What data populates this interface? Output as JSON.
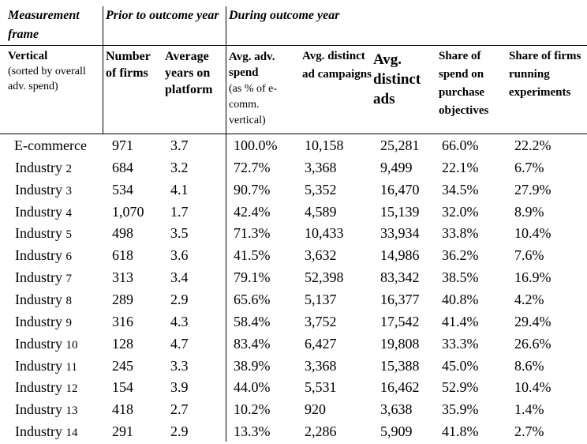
{
  "groups": {
    "measurement_frame": "Measurement frame",
    "prior": "Prior to outcome year",
    "during": "During outcome year"
  },
  "columns": {
    "vertical_title": "Vertical",
    "vertical_sub": "(sorted by overall adv. spend)",
    "firms": "Number of firms",
    "years": "Average years on platform",
    "spend_title": "Avg. adv. spend",
    "spend_sub": "(as % of e-comm. vertical)",
    "campaigns": "Avg. distinct ad campaigns",
    "ads": "Avg. distinct ads",
    "purchase": "Share of spend on purchase objectives",
    "experiments": "Share of firms running experiments"
  },
  "rows": [
    {
      "name": "E-commerce",
      "num": "",
      "firms": "971",
      "years": "3.7",
      "spend": "100.0%",
      "campaigns": "10,158",
      "ads": "25,281",
      "purchase": "66.0%",
      "exp": "22.2%"
    },
    {
      "name": "Industry ",
      "num": "2",
      "firms": "684",
      "years": "3.2",
      "spend": "72.7%",
      "campaigns": "3,368",
      "ads": "9,499",
      "purchase": "22.1%",
      "exp": "6.7%"
    },
    {
      "name": "Industry ",
      "num": "3",
      "firms": "534",
      "years": "4.1",
      "spend": "90.7%",
      "campaigns": "5,352",
      "ads": "16,470",
      "purchase": "34.5%",
      "exp": "27.9%"
    },
    {
      "name": "Industry ",
      "num": "4",
      "firms": "1,070",
      "years": "1.7",
      "spend": "42.4%",
      "campaigns": "4,589",
      "ads": "15,139",
      "purchase": "32.0%",
      "exp": "8.9%"
    },
    {
      "name": "Industry ",
      "num": "5",
      "firms": "498",
      "years": "3.5",
      "spend": "71.3%",
      "campaigns": "10,433",
      "ads": "33,934",
      "purchase": "33.8%",
      "exp": "10.4%"
    },
    {
      "name": "Industry ",
      "num": "6",
      "firms": "618",
      "years": "3.6",
      "spend": "41.5%",
      "campaigns": "3,632",
      "ads": "14,986",
      "purchase": "36.2%",
      "exp": "7.6%"
    },
    {
      "name": "Industry ",
      "num": "7",
      "firms": "313",
      "years": "3.4",
      "spend": "79.1%",
      "campaigns": "52,398",
      "ads": "83,342",
      "purchase": "38.5%",
      "exp": "16.9%"
    },
    {
      "name": "Industry ",
      "num": "8",
      "firms": "289",
      "years": "2.9",
      "spend": "65.6%",
      "campaigns": "5,137",
      "ads": "16,377",
      "purchase": "40.8%",
      "exp": "4.2%"
    },
    {
      "name": "Industry ",
      "num": "9",
      "firms": "316",
      "years": "4.3",
      "spend": "58.4%",
      "campaigns": "3,752",
      "ads": "17,542",
      "purchase": "41.4%",
      "exp": "29.4%"
    },
    {
      "name": "Industry ",
      "num": "10",
      "firms": "128",
      "years": "4.7",
      "spend": "83.4%",
      "campaigns": "6,427",
      "ads": "19,808",
      "purchase": "33.3%",
      "exp": "26.6%"
    },
    {
      "name": "Industry ",
      "num": "11",
      "firms": "245",
      "years": "3.3",
      "spend": "38.9%",
      "campaigns": "3,368",
      "ads": "15,388",
      "purchase": "45.0%",
      "exp": "8.6%"
    },
    {
      "name": "Industry ",
      "num": "12",
      "firms": "154",
      "years": "3.9",
      "spend": "44.0%",
      "campaigns": "5,531",
      "ads": "16,462",
      "purchase": "52.9%",
      "exp": "10.4%"
    },
    {
      "name": "Industry ",
      "num": "13",
      "firms": "418",
      "years": "2.7",
      "spend": "10.2%",
      "campaigns": "920",
      "ads": "3,638",
      "purchase": "35.9%",
      "exp": "1.4%"
    },
    {
      "name": "Industry ",
      "num": "14",
      "firms": "291",
      "years": "2.9",
      "spend": "13.3%",
      "campaigns": "2,286",
      "ads": "5,909",
      "purchase": "41.8%",
      "exp": "2.7%"
    }
  ]
}
